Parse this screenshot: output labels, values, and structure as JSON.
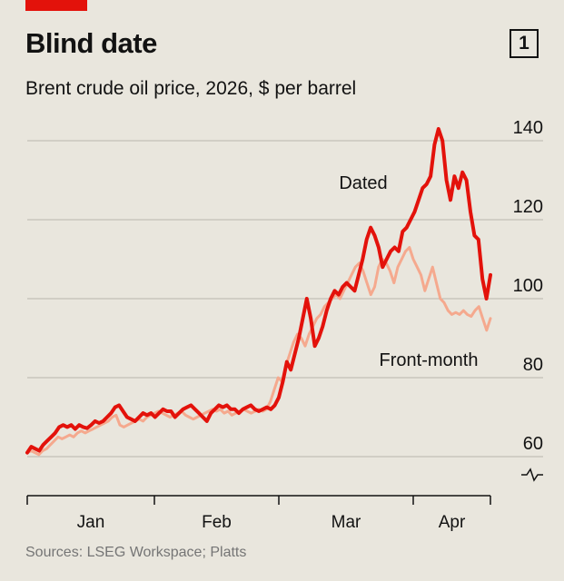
{
  "header": {
    "title": "Blind date",
    "badge": "1"
  },
  "chart_data": {
    "type": "line",
    "title": "Blind date",
    "subtitle": "Brent crude oil price, 2026, $ per barrel",
    "xlabel": "",
    "ylabel": "$ per barrel",
    "ylim": [
      55,
      145
    ],
    "yticks": [
      60,
      80,
      100,
      120,
      140
    ],
    "x_month_labels": [
      "Jan",
      "Feb",
      "Mar",
      "Apr"
    ],
    "grid": true,
    "series": [
      {
        "name": "Dated",
        "color": "#e3120b",
        "values": [
          61,
          62.5,
          62,
          61.5,
          63,
          64,
          65,
          66,
          67.5,
          68,
          67.5,
          68,
          67,
          68,
          67.5,
          67.2,
          68,
          69,
          68.5,
          69,
          70,
          71,
          72.5,
          73,
          71.5,
          70,
          69.5,
          69,
          70,
          71,
          70.5,
          71,
          70,
          71,
          72,
          71.5,
          71.5,
          70,
          71,
          72,
          72.5,
          73,
          72,
          71,
          70,
          69,
          71,
          72,
          73,
          72.5,
          73,
          72,
          72,
          71,
          72,
          72.5,
          73,
          72,
          71.5,
          72,
          72.5,
          72,
          73,
          75,
          79,
          84,
          82,
          86,
          90,
          95,
          100,
          95,
          88,
          90,
          93,
          97,
          100,
          102,
          101,
          103,
          104,
          103,
          102,
          106,
          110,
          115,
          118,
          116,
          113,
          108,
          110,
          112,
          113,
          112,
          117,
          118,
          120,
          122,
          125,
          128,
          129,
          131,
          139,
          143,
          140,
          130,
          125,
          131,
          128,
          132,
          130,
          122,
          116,
          115,
          105,
          100,
          106
        ]
      },
      {
        "name": "Front-month",
        "color": "#f5a98e",
        "values": [
          61,
          61.5,
          61,
          60.5,
          61.5,
          62,
          63,
          64,
          65,
          64.5,
          65,
          65.5,
          65,
          66,
          66.5,
          66,
          66.5,
          67,
          67.5,
          68,
          68.5,
          69,
          70,
          70.5,
          68,
          67.5,
          68,
          68.5,
          69,
          69.5,
          69,
          70,
          70.5,
          71,
          71.5,
          71,
          70.5,
          70,
          70.5,
          71,
          71.5,
          70.5,
          70,
          69.5,
          70,
          70.5,
          71,
          71.5,
          72,
          71.5,
          72,
          71,
          71.5,
          70.5,
          71,
          71.5,
          72,
          71.5,
          71,
          71.5,
          72,
          71.5,
          72,
          74,
          77,
          80,
          79,
          83,
          86,
          89,
          91,
          90,
          88,
          91,
          93,
          95,
          96,
          98,
          99,
          100,
          101,
          100,
          102,
          104,
          106,
          108,
          109,
          107,
          104,
          101,
          103,
          108,
          110,
          109,
          107,
          104,
          108,
          110,
          112,
          113,
          110,
          108,
          106,
          102,
          105,
          108,
          104,
          100,
          99,
          97,
          96,
          96.5,
          96,
          97,
          96,
          95.5,
          97,
          98,
          95,
          92,
          95
        ]
      }
    ],
    "annotations": [
      {
        "text": "Dated",
        "series": "Dated"
      },
      {
        "text": "Front-month",
        "series": "Front-month"
      }
    ],
    "source": "Sources: LSEG Workspace; Platts"
  }
}
